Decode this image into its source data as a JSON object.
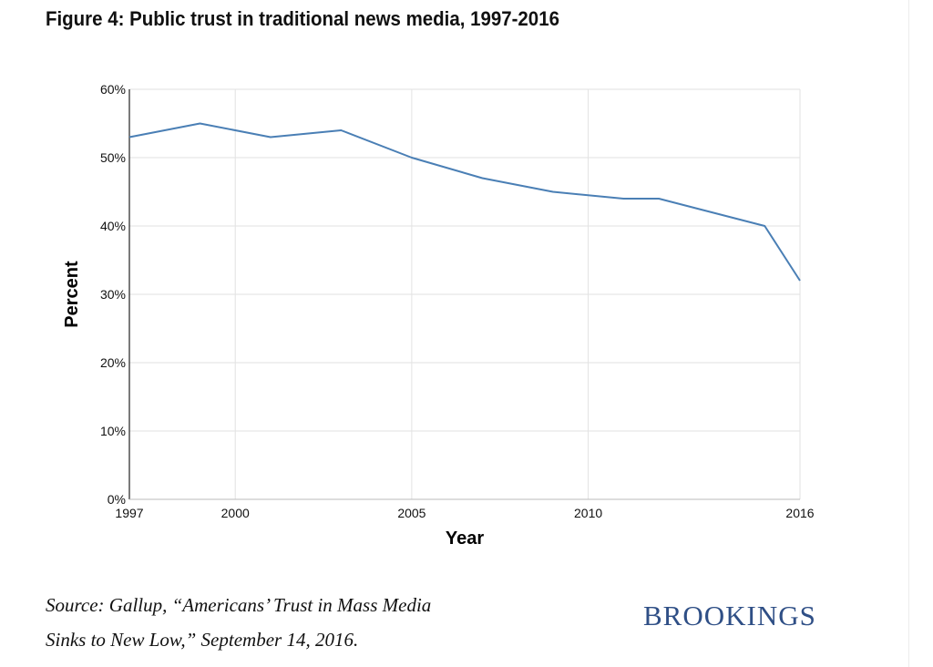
{
  "title": "Figure 4: Public trust in traditional news media, 1997-2016",
  "source_line1": "Source: Gallup, “Americans’ Trust in Mass Media",
  "source_line2": "Sinks to New Low,” September 14, 2016.",
  "brand": "BROOKINGS",
  "colors": {
    "line": "#4a7fb5",
    "grid": "#e2e2e2",
    "brand": "#2f4f86"
  },
  "chart_data": {
    "type": "line",
    "title": "Figure 4: Public trust in traditional news media, 1997-2016",
    "xlabel": "Year",
    "ylabel": "Percent",
    "xlim": [
      1997,
      2016
    ],
    "ylim": [
      0,
      60
    ],
    "x_ticks": [
      1997,
      2000,
      2005,
      2010,
      2016
    ],
    "y_ticks": [
      0,
      10,
      20,
      30,
      40,
      50,
      60
    ],
    "y_tick_labels": [
      "0%",
      "10%",
      "20%",
      "30%",
      "40%",
      "50%",
      "60%"
    ],
    "grid": true,
    "series": [
      {
        "x": [
          1997,
          1999,
          2001,
          2003,
          2005,
          2007,
          2009,
          2011,
          2012,
          2015,
          2016
        ],
        "y": [
          53,
          55,
          53,
          54,
          50,
          47,
          45,
          44,
          44,
          40,
          32
        ]
      }
    ]
  }
}
